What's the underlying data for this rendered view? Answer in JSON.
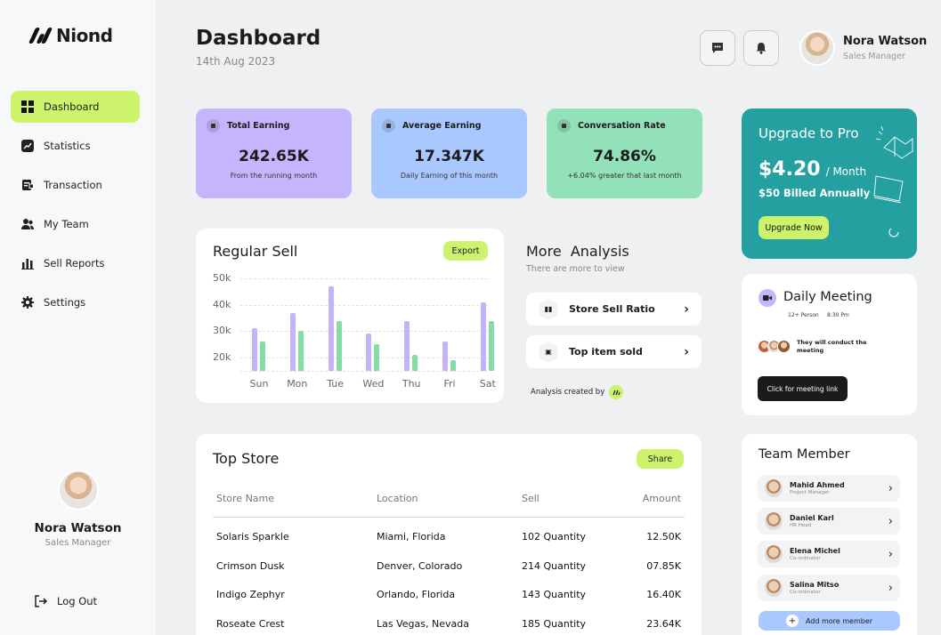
{
  "app": {
    "name": "Niond"
  },
  "nav": {
    "items": [
      {
        "label": "Dashboard"
      },
      {
        "label": "Statistics"
      },
      {
        "label": "Transaction"
      },
      {
        "label": "My Team"
      },
      {
        "label": "Sell Reports"
      },
      {
        "label": "Settings"
      }
    ],
    "logout": "Log Out"
  },
  "user": {
    "name": "Nora Watson",
    "role": "Sales Manager"
  },
  "header": {
    "title": "Dashboard",
    "date": "14th Aug 2023"
  },
  "stats": [
    {
      "title": "Total Earning",
      "value": "242.65K",
      "sub": "From the running month",
      "color": "#c4b5fd"
    },
    {
      "title": "Average Earning",
      "value": "17.347K",
      "sub": "Daily Earning of this month",
      "color": "#a9c8ff"
    },
    {
      "title": "Conversation  Rate",
      "value": "74.86%",
      "sub": "+6.04% greater that last month",
      "color": "#92e1b8"
    }
  ],
  "upgrade": {
    "title": "Upgrade to Pro",
    "price": "$4.20",
    "period": "/ Month",
    "billing": "$50 Billed Annually",
    "button": "Upgrade Now",
    "color": "#24a0a0"
  },
  "regular_sell": {
    "title": "Regular Sell",
    "export_label": "Export"
  },
  "chart_data": {
    "type": "bar",
    "title": "Regular Sell",
    "categories": [
      "Sun",
      "Mon",
      "Tue",
      "Wed",
      "Thu",
      "Fri",
      "Sat"
    ],
    "y_ticks": [
      "50k",
      "40k",
      "30k",
      "20k"
    ],
    "ylim": [
      15,
      50
    ],
    "series": [
      {
        "name": "series-purple",
        "color": "#c4b3f6",
        "values": [
          31,
          37,
          47,
          29,
          34,
          26,
          41
        ]
      },
      {
        "name": "series-green",
        "color": "#86dca9",
        "values": [
          26,
          30,
          34,
          25,
          21,
          19,
          34
        ]
      }
    ]
  },
  "analysis": {
    "title": "More  Analysis",
    "subtitle": "There are more to view",
    "items": [
      {
        "label": "Store Sell Ratio"
      },
      {
        "label": "Top item sold"
      }
    ],
    "footer": "Analysis created by"
  },
  "meeting": {
    "title": "Daily Meeting",
    "people": "12+ Person",
    "time": "8:30 Pm",
    "note": "They will conduct the meeting",
    "button": "Click for meeting link"
  },
  "top_store": {
    "title": "Top Store",
    "share_label": "Share",
    "columns": [
      "Store Name",
      "Location",
      "Sell",
      "Amount"
    ],
    "rows": [
      {
        "name": "Solaris Sparkle",
        "location": "Miami, Florida",
        "sell": "102 Quantity",
        "amount": "12.50K"
      },
      {
        "name": "Crimson Dusk",
        "location": "Denver, Colorado",
        "sell": "214 Quantity",
        "amount": "07.85K"
      },
      {
        "name": "Indigo Zephyr",
        "location": "Orlando, Florida",
        "sell": "143 Quantity",
        "amount": "16.40K"
      },
      {
        "name": "Roseate Crest",
        "location": "Las Vegas, Nevada",
        "sell": "185 Quantity",
        "amount": "23.64K"
      }
    ]
  },
  "team": {
    "title": "Team Member",
    "members": [
      {
        "name": "Mahid Ahmed",
        "role": "Project Manager"
      },
      {
        "name": "Daniel Karl",
        "role": "HR Head"
      },
      {
        "name": "Elena Michel",
        "role": "Co-ordinator"
      },
      {
        "name": "Salina Mitso",
        "role": "Co-ordinator"
      }
    ],
    "add_label": "Add more member"
  }
}
